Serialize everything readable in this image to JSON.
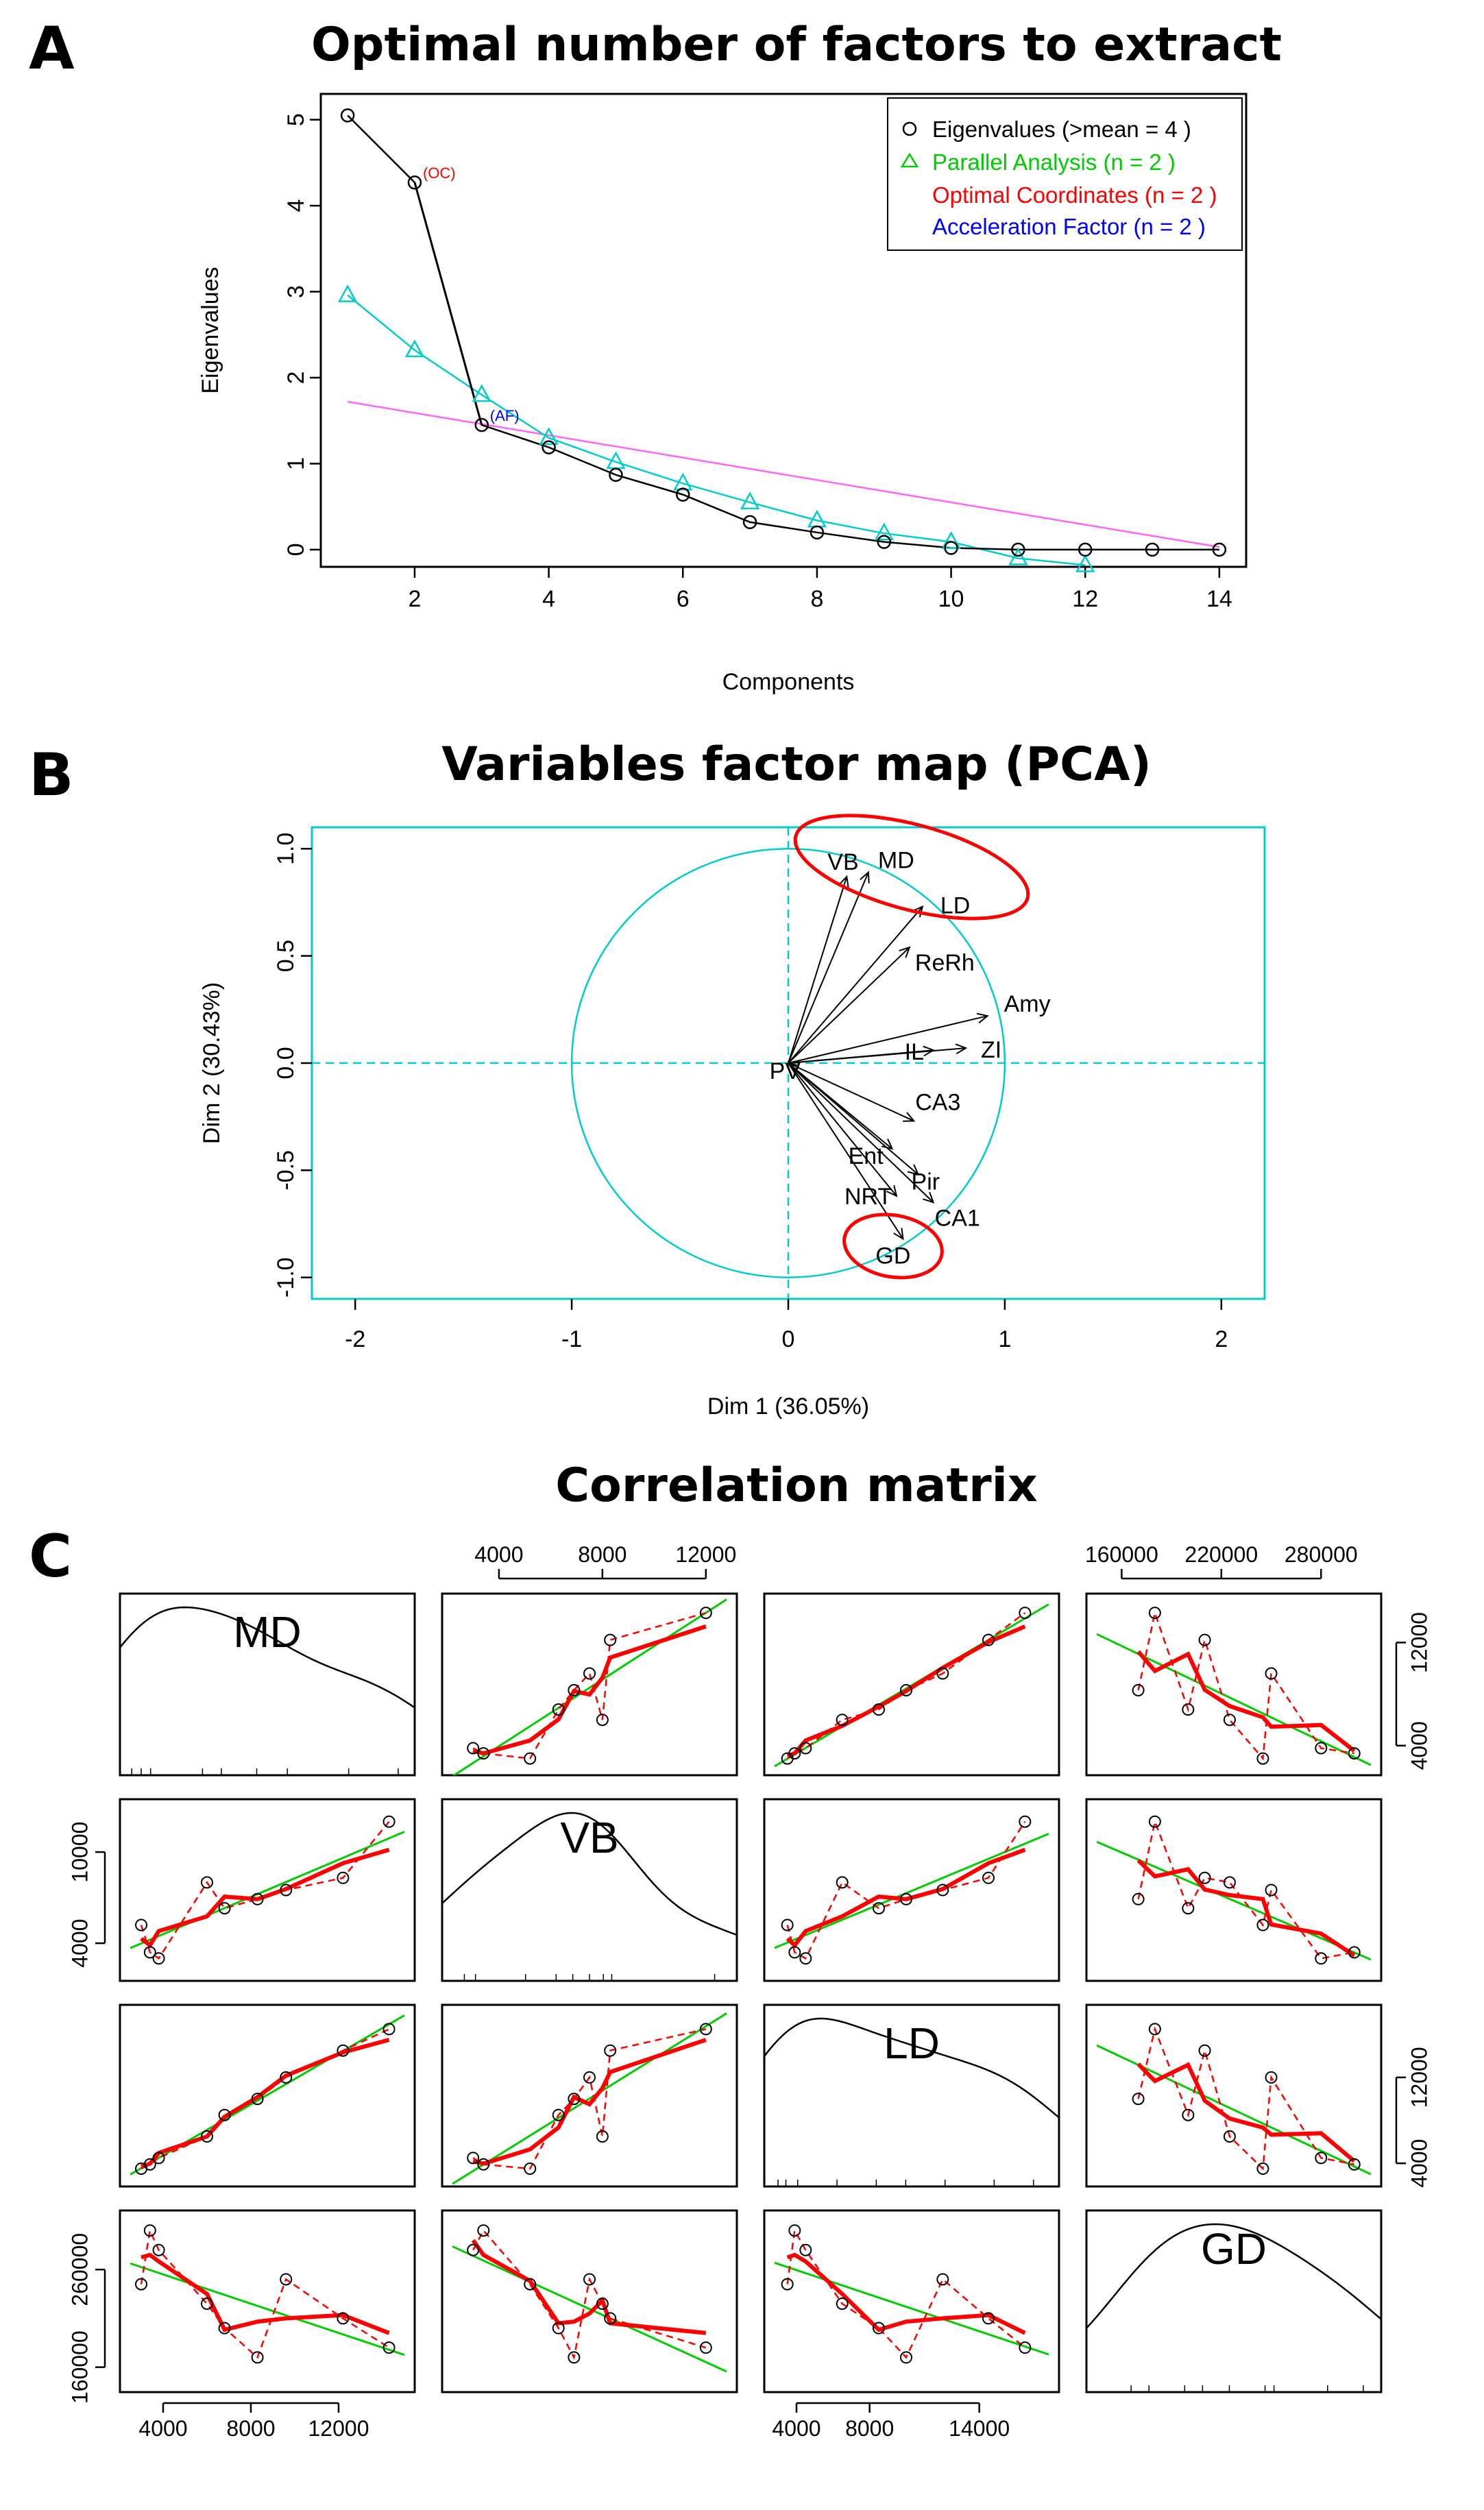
{
  "panel_labels": {
    "a": "A",
    "b": "B",
    "c": "C"
  },
  "colors": {
    "black": "#000000",
    "green": "#00cc00",
    "cyan": "#00cccc",
    "magenta": "#ff66ff",
    "red": "#ff0000",
    "blue": "#0000ff"
  },
  "chart_data": [
    {
      "id": "A",
      "type": "line",
      "title": "Optimal number of factors to extract",
      "xlabel": "Components",
      "ylabel": "Eigenvalues",
      "xlim": [
        0.6,
        14.4
      ],
      "ylim": [
        -0.2,
        5.3
      ],
      "xticks": [
        2,
        4,
        6,
        8,
        10,
        12,
        14
      ],
      "yticks": [
        0,
        1,
        2,
        3,
        4,
        5
      ],
      "x": [
        1,
        2,
        3,
        4,
        5,
        6,
        7,
        8,
        9,
        10,
        11,
        12,
        13,
        14
      ],
      "series": [
        {
          "name": "Eigenvalues",
          "marker": "circle",
          "color": "#000000",
          "values": [
            5.05,
            4.27,
            1.45,
            1.19,
            0.87,
            0.64,
            0.32,
            0.2,
            0.09,
            0.02,
            0.0,
            0.0,
            0.0,
            0.0
          ]
        },
        {
          "name": "Parallel Analysis",
          "marker": "triangle",
          "color": "#00cccc",
          "values": [
            2.96,
            2.32,
            1.8,
            1.3,
            1.02,
            0.77,
            0.55,
            0.34,
            0.19,
            0.09,
            -0.1,
            -0.18,
            null,
            null
          ]
        }
      ],
      "optimal_coordinates_line": {
        "x": [
          1,
          14
        ],
        "y": [
          1.72,
          0.03
        ],
        "color": "#ff66ff"
      },
      "oc_segment": {
        "x": [
          2,
          3
        ],
        "y": [
          4.27,
          1.45
        ]
      },
      "annotations": [
        {
          "text": "(OC)",
          "x": 2,
          "y": 4.27,
          "color": "#ff0000"
        },
        {
          "text": "(AF)",
          "x": 3,
          "y": 1.45,
          "color": "#0000ff"
        }
      ],
      "legend": {
        "position": "top-right",
        "entries": [
          {
            "text": "Eigenvalues (>mean  =  4 )",
            "color": "#000000",
            "marker": "circle"
          },
          {
            "text": "Parallel Analysis (n =  2 )",
            "color": "#00cc00",
            "marker": "triangle"
          },
          {
            "text": "Optimal Coordinates (n =  2 )",
            "color": "#ff0000",
            "marker": "none"
          },
          {
            "text": "Acceleration Factor (n =  2 )",
            "color": "#0000ff",
            "marker": "none"
          }
        ]
      }
    },
    {
      "id": "B",
      "type": "scatter",
      "subtype": "pca-variables-map",
      "title": "Variables factor map (PCA)",
      "xlabel": "Dim 1 (36.05%)",
      "ylabel": "Dim 2 (30.43%)",
      "xlim": [
        -2.2,
        2.2
      ],
      "ylim": [
        -1.1,
        1.1
      ],
      "xticks": [
        -2,
        -1,
        0,
        1,
        2
      ],
      "yticks": [
        -1.0,
        -0.5,
        0.0,
        0.5,
        1.0
      ],
      "circle_radius": 1,
      "vectors": [
        {
          "name": "VB",
          "x": 0.27,
          "y": 0.87
        },
        {
          "name": "MD",
          "x": 0.37,
          "y": 0.89
        },
        {
          "name": "LD",
          "x": 0.62,
          "y": 0.73
        },
        {
          "name": "ReRh",
          "x": 0.56,
          "y": 0.54
        },
        {
          "name": "Amy",
          "x": 0.92,
          "y": 0.22
        },
        {
          "name": "IL",
          "x": 0.67,
          "y": 0.06
        },
        {
          "name": "ZI",
          "x": 0.82,
          "y": 0.07
        },
        {
          "name": "PV",
          "x": 0.04,
          "y": -0.01
        },
        {
          "name": "CA3",
          "x": 0.58,
          "y": -0.27
        },
        {
          "name": "Ent",
          "x": 0.48,
          "y": -0.4
        },
        {
          "name": "Pir",
          "x": 0.6,
          "y": -0.52
        },
        {
          "name": "CA1",
          "x": 0.67,
          "y": -0.65
        },
        {
          "name": "NRT",
          "x": 0.5,
          "y": -0.62
        },
        {
          "name": "GD",
          "x": 0.53,
          "y": -0.82
        }
      ],
      "highlight_groups": [
        [
          "VB",
          "MD",
          "LD"
        ],
        [
          "GD"
        ]
      ]
    },
    {
      "id": "C",
      "type": "scatter",
      "subtype": "correlation-scatterplot-matrix",
      "title": "Correlation matrix",
      "variables": [
        "MD",
        "VB",
        "LD",
        "GD"
      ],
      "values": {
        "MD": [
          3000,
          3400,
          3800,
          6000,
          6800,
          8300,
          9600,
          12200,
          14300
        ],
        "VB": [
          5200,
          3400,
          3000,
          8000,
          6300,
          6900,
          7500,
          8300,
          12000
        ],
        "LD": [
          3500,
          3900,
          4500,
          6500,
          8500,
          10000,
          12000,
          14500,
          16500
        ],
        "GD": [
          245000,
          300000,
          280000,
          225000,
          200000,
          170000,
          250000,
          210000,
          180000
        ]
      },
      "outer_axes": {
        "top": [
          {
            "variable": "VB",
            "ticks": [
              "4000",
              "8000",
              "12000"
            ]
          },
          {
            "variable": "GD",
            "ticks": [
              "160000",
              "220000",
              "280000"
            ]
          }
        ],
        "bottom": [
          {
            "variable": "MD",
            "ticks": [
              "4000",
              "8000",
              "12000"
            ]
          },
          {
            "variable": "LD",
            "ticks": [
              "4000",
              "8000",
              "14000"
            ]
          }
        ],
        "left": [
          {
            "variable": "VB",
            "ticks": [
              "10000",
              "4000"
            ]
          },
          {
            "variable": "GD",
            "ticks": [
              "260000",
              "160000"
            ]
          }
        ],
        "right": [
          {
            "variable": "MD",
            "ticks": [
              "12000",
              "4000"
            ]
          },
          {
            "variable": "LD",
            "ticks": [
              "12000",
              "4000"
            ]
          }
        ]
      }
    }
  ]
}
